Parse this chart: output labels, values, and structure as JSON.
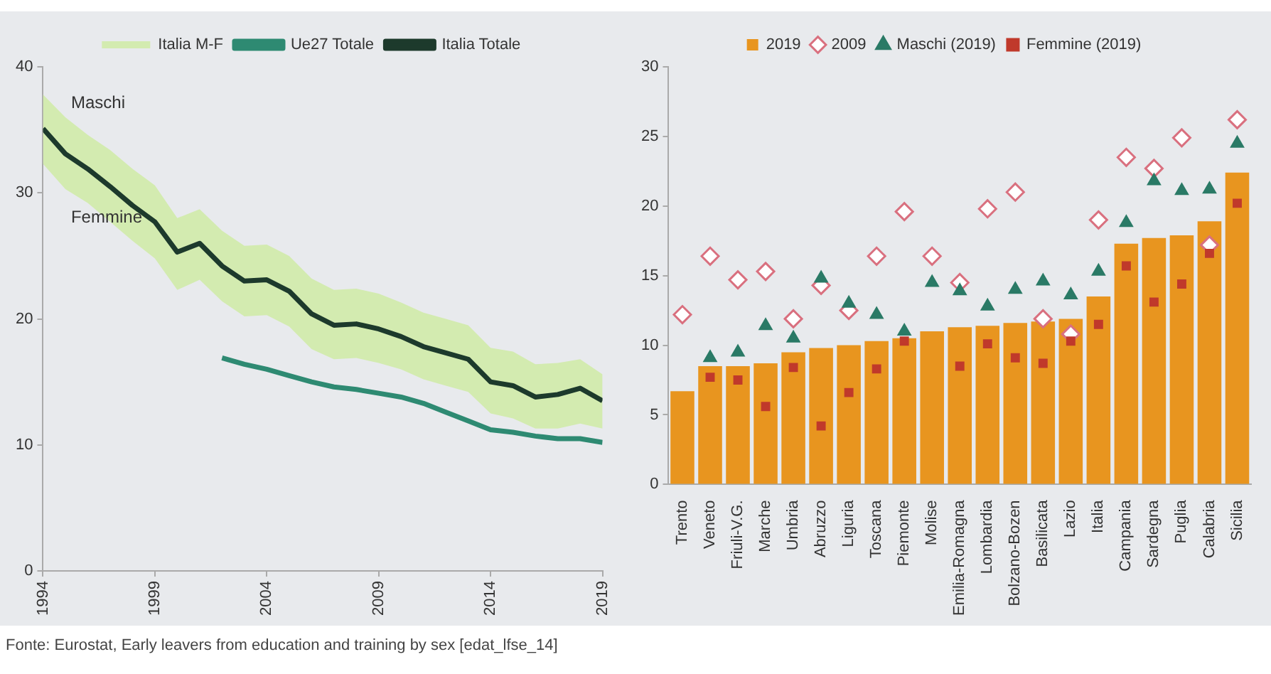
{
  "chart_data": [
    {
      "type": "line",
      "x": [
        1994,
        1995,
        1996,
        1997,
        1998,
        1999,
        2000,
        2001,
        2002,
        2003,
        2004,
        2005,
        2006,
        2007,
        2008,
        2009,
        2010,
        2011,
        2012,
        2013,
        2014,
        2015,
        2016,
        2017,
        2018,
        2019
      ],
      "xlim": [
        1994,
        2019
      ],
      "xticks": [
        1994,
        1999,
        2004,
        2009,
        2014,
        2019
      ],
      "ylim": [
        0,
        40
      ],
      "yticks": [
        0,
        10,
        20,
        30,
        40
      ],
      "legend": "top",
      "grid": false,
      "series": [
        {
          "name": "Italia M-F",
          "type": "area",
          "color": "#d3ebb0",
          "values": [
            null,
            null,
            null,
            null,
            null,
            null,
            null,
            null,
            null,
            null,
            null,
            null,
            null,
            null,
            null,
            null,
            null,
            null,
            null,
            null,
            null,
            null,
            null,
            null,
            null,
            null
          ],
          "lower": [
            32.3,
            30.3,
            29.2,
            27.7,
            26.2,
            24.8,
            22.3,
            23.1,
            21.4,
            20.2,
            20.3,
            19.4,
            17.6,
            16.8,
            16.9,
            16.5,
            16.0,
            15.2,
            14.7,
            14.2,
            12.5,
            12.1,
            11.3,
            11.3,
            11.7,
            11.3
          ],
          "upper": [
            37.8,
            36.0,
            34.6,
            33.4,
            31.9,
            30.6,
            28.0,
            28.7,
            27.0,
            25.8,
            25.9,
            25.0,
            23.2,
            22.3,
            22.4,
            22.0,
            21.3,
            20.5,
            20.0,
            19.5,
            17.7,
            17.4,
            16.4,
            16.5,
            16.8,
            15.6
          ]
        },
        {
          "name": "Ue27 Totale",
          "type": "line",
          "color": "#2e8a72",
          "values": [
            null,
            null,
            null,
            null,
            null,
            null,
            null,
            null,
            16.9,
            16.4,
            16.0,
            15.5,
            15.0,
            14.6,
            14.4,
            14.1,
            13.8,
            13.3,
            12.6,
            11.9,
            11.2,
            11.0,
            10.7,
            10.5,
            10.5,
            10.2
          ]
        },
        {
          "name": "Italia Totale",
          "type": "line",
          "color": "#1d3a2c",
          "values": [
            35.1,
            33.1,
            31.9,
            30.5,
            29.0,
            27.7,
            25.3,
            26.0,
            24.2,
            23.0,
            23.1,
            22.2,
            20.4,
            19.5,
            19.6,
            19.2,
            18.6,
            17.8,
            17.3,
            16.8,
            15.0,
            14.7,
            13.8,
            14.0,
            14.5,
            13.5
          ]
        }
      ],
      "annotations": [
        {
          "text": "Maschi",
          "x": 1995,
          "y": 36.0
        },
        {
          "text": "Femmine",
          "x": 1995,
          "y": 30.3
        },
        "Fonte: Eurostat, Early leavers from education and training by sex [edat_lfse_14]"
      ]
    },
    {
      "type": "bar",
      "categories": [
        "Trento",
        "Veneto",
        "Friuli-V.G.",
        "Marche",
        "Umbria",
        "Abruzzo",
        "Liguria",
        "Toscana",
        "Piemonte",
        "Molise",
        "Emilia-Romagna",
        "Lombardia",
        "Bolzano-Bozen",
        "Basilicata",
        "Lazio",
        "Italia",
        "Campania",
        "Sardegna",
        "Puglia",
        "Calabria",
        "Sicilia"
      ],
      "ylim": [
        0,
        30
      ],
      "yticks": [
        0,
        5,
        10,
        15,
        20,
        25,
        30
      ],
      "legend": "top",
      "grid": false,
      "series": [
        {
          "name": "2019",
          "type": "bar",
          "color": "#e8951f",
          "values": [
            6.7,
            8.5,
            8.5,
            8.7,
            9.5,
            9.8,
            10.0,
            10.3,
            10.5,
            11.0,
            11.3,
            11.4,
            11.6,
            11.7,
            11.9,
            13.5,
            17.3,
            17.7,
            17.9,
            18.9,
            22.4
          ]
        },
        {
          "name": "2009",
          "type": "scatter",
          "marker": "diamond",
          "color": "#d9707f",
          "x": [
            "Trento",
            "Veneto",
            "Friuli-V.G.",
            "Marche",
            "Umbria",
            "Abruzzo",
            "Liguria",
            "Toscana",
            "Piemonte",
            "Molise",
            "Emilia-Romagna",
            "Lombardia",
            "Bolzano-Bozen",
            "Basilicata",
            "Lazio",
            "Italia",
            "Campania",
            "Sardegna",
            "Puglia",
            "Calabria",
            "Sicilia"
          ],
          "values": [
            12.2,
            16.4,
            14.7,
            15.3,
            11.9,
            14.3,
            12.5,
            16.4,
            19.6,
            16.4,
            14.5,
            19.8,
            21.0,
            11.9,
            10.8,
            19.0,
            23.5,
            22.7,
            24.9,
            17.2,
            26.2
          ]
        },
        {
          "name": "Maschi (2019)",
          "type": "scatter",
          "marker": "triangle",
          "color": "#2a7a66",
          "x": [
            "Trento",
            "Veneto",
            "Friuli-V.G.",
            "Marche",
            "Umbria",
            "Abruzzo",
            "Liguria",
            "Toscana",
            "Piemonte",
            "Molise",
            "Emilia-Romagna",
            "Lombardia",
            "Bolzano-Bozen",
            "Basilicata",
            "Lazio",
            "Italia",
            "Campania",
            "Sardegna",
            "Puglia",
            "Calabria",
            "Sicilia"
          ],
          "values": [
            null,
            9.1,
            9.5,
            11.4,
            10.5,
            14.8,
            13.0,
            12.2,
            11.0,
            14.5,
            13.9,
            12.8,
            14.0,
            14.6,
            13.6,
            15.3,
            18.8,
            21.8,
            21.1,
            21.2,
            24.5
          ]
        },
        {
          "name": "Femmine (2019)",
          "type": "scatter",
          "marker": "square",
          "color": "#c0392b",
          "x": [
            "Trento",
            "Veneto",
            "Friuli-V.G.",
            "Marche",
            "Umbria",
            "Abruzzo",
            "Liguria",
            "Toscana",
            "Piemonte",
            "Molise",
            "Emilia-Romagna",
            "Lombardia",
            "Bolzano-Bozen",
            "Basilicata",
            "Lazio",
            "Italia",
            "Campania",
            "Sardegna",
            "Puglia",
            "Calabria",
            "Sicilia"
          ],
          "values": [
            null,
            7.7,
            7.5,
            5.6,
            8.4,
            4.2,
            6.6,
            8.3,
            10.3,
            null,
            8.5,
            10.1,
            9.1,
            8.7,
            10.3,
            11.5,
            15.7,
            13.1,
            14.4,
            16.6,
            20.2
          ]
        }
      ]
    }
  ]
}
